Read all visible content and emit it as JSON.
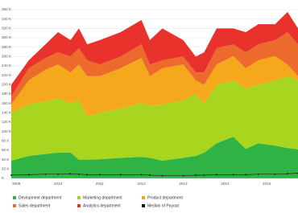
{
  "chart_data": {
    "type": "area",
    "stacked": true,
    "grid": true,
    "x": [
      2008.88,
      2009.3,
      2009.7,
      2010.0,
      2010.3,
      2010.5,
      2010.7,
      2011.0,
      2011.5,
      2012.0,
      2012.2,
      2012.5,
      2013.0,
      2013.3,
      2013.5,
      2013.8,
      2014.2,
      2014.5,
      2014.8,
      2015.2,
      2015.5,
      2015.75
    ],
    "xlim": [
      2008.88,
      2015.75
    ],
    "xticks": [
      2009,
      2010,
      2011,
      2012,
      2013,
      2014,
      2015
    ],
    "ylim": [
      0,
      360
    ],
    "yticks": [
      0,
      {
        "value": 20,
        "label": "20 K"
      },
      {
        "value": 40,
        "label": "40 K"
      },
      {
        "value": 60,
        "label": "60 K"
      },
      {
        "value": 80,
        "label": "80 K"
      },
      {
        "value": 100,
        "label": "100 K"
      },
      {
        "value": 120,
        "label": "120 K"
      },
      {
        "value": 140,
        "label": "140 K"
      },
      {
        "value": 160,
        "label": "160 K"
      },
      {
        "value": 180,
        "label": "180 K"
      },
      {
        "value": 200,
        "label": "200 K"
      },
      {
        "value": 220,
        "label": "220 K"
      },
      {
        "value": 240,
        "label": "240 K"
      },
      {
        "value": 260,
        "label": "260 K"
      },
      {
        "value": 280,
        "label": "280 K"
      },
      {
        "value": 300,
        "label": "300 K"
      },
      {
        "value": 320,
        "label": "320 K"
      },
      {
        "value": 340,
        "label": "340 K"
      },
      {
        "value": 360,
        "label": "360 K"
      }
    ],
    "series": [
      {
        "name": "Devlopment department",
        "color": "#2fb344",
        "mode": "area",
        "values": [
          38,
          48,
          52,
          55,
          55,
          40,
          40,
          41,
          44,
          46,
          44,
          38,
          44,
          48,
          55,
          75,
          89,
          63,
          75,
          70,
          65,
          62
        ]
      },
      {
        "name": "Marketing department",
        "color": "#a8d61f",
        "mode": "area",
        "values": [
          102,
          110,
          112,
          116,
          105,
          126,
          92,
          99,
          105,
          115,
          111,
          120,
          122,
          132,
          103,
          125,
          120,
          129,
          125,
          139,
          153,
          147
        ]
      },
      {
        "name": "Product department",
        "color": "#f5a81c",
        "mode": "area",
        "values": [
          18,
          51,
          68,
          72,
          66,
          77,
          86,
          78,
          86,
          96,
          63,
          77,
          77,
          29,
          42,
          43,
          52,
          43,
          52,
          52,
          25,
          9
        ]
      },
      {
        "name": "Sales department",
        "color": "#ec6a2c",
        "mode": "area",
        "values": [
          17,
          26,
          25,
          26,
          34,
          35,
          34,
          25,
          25,
          29,
          25,
          17,
          17,
          17,
          26,
          35,
          25,
          34,
          34,
          34,
          69,
          68
        ]
      },
      {
        "name": "Analytics department",
        "color": "#e8322b",
        "mode": "area",
        "values": [
          25,
          17,
          29,
          43,
          35,
          42,
          34,
          52,
          52,
          52,
          52,
          68,
          35,
          34,
          43,
          42,
          34,
          43,
          43,
          34,
          43,
          34
        ]
      },
      {
        "name": "Median of Payout",
        "color": "#111111",
        "mode": "line",
        "values": [
          7,
          8,
          9,
          9,
          10,
          9,
          8,
          8,
          8,
          8,
          7,
          6,
          6,
          7,
          7,
          8,
          8,
          8,
          9,
          9,
          10,
          11
        ]
      }
    ]
  }
}
